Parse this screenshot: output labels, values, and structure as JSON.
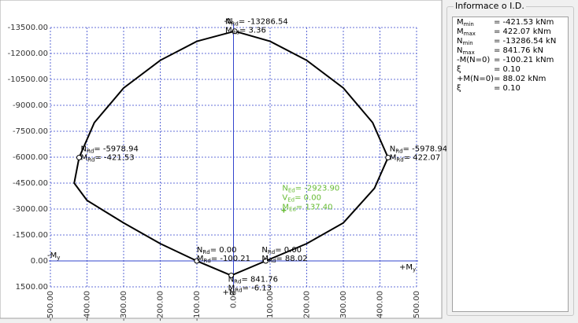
{
  "chart_data": {
    "type": "line",
    "xlim": [
      -500,
      500
    ],
    "ylim": [
      -13500,
      1500
    ],
    "y_reversed": true,
    "grid": true,
    "xticks": [
      {
        "value": -500,
        "label": "-500.00"
      },
      {
        "value": -400,
        "label": "-400.00"
      },
      {
        "value": -300,
        "label": "-300.00"
      },
      {
        "value": -200,
        "label": "-200.00"
      },
      {
        "value": -100,
        "label": "-100.00"
      },
      {
        "value": 0,
        "label": "0.00"
      },
      {
        "value": 100,
        "label": "100.00"
      },
      {
        "value": 200,
        "label": "200.00"
      },
      {
        "value": 300,
        "label": "300.00"
      },
      {
        "value": 400,
        "label": "400.00"
      },
      {
        "value": 500,
        "label": "500.00"
      }
    ],
    "yticks": [
      {
        "value": -13500,
        "label": "-13500.00"
      },
      {
        "value": -12000,
        "label": "-12000.00"
      },
      {
        "value": -10500,
        "label": "-10500.00"
      },
      {
        "value": -9000,
        "label": "-9000.00"
      },
      {
        "value": -7500,
        "label": "-7500.00"
      },
      {
        "value": -6000,
        "label": "-6000.00"
      },
      {
        "value": -4500,
        "label": "-4500.00"
      },
      {
        "value": -3000,
        "label": "-3000.00"
      },
      {
        "value": -1500,
        "label": "-1500.00"
      },
      {
        "value": 0,
        "label": "0.00"
      },
      {
        "value": 1500,
        "label": "1500.00"
      }
    ],
    "axis_labels": {
      "top": "-N",
      "bottom": "+N",
      "left": {
        "sym": "-M",
        "sub": "y"
      },
      "right": {
        "sym": "+M",
        "sub": "y"
      }
    },
    "curve": {
      "color": "#000000",
      "x": [
        3.36,
        -100,
        -200,
        -300,
        -380,
        -421.53,
        -435,
        -400,
        -300,
        -200,
        -100.21,
        -6.13,
        88.02,
        200,
        300,
        385,
        422.07,
        380,
        300,
        200,
        100,
        3.36
      ],
      "y": [
        -13286.54,
        -12700,
        -11600,
        -10000,
        -8000,
        -5978.94,
        -4500,
        -3500,
        -2200,
        -1000,
        0,
        841.76,
        0,
        -1000,
        -2200,
        -4200,
        -5978.94,
        -8000,
        -10000,
        -11600,
        -12700,
        -13286.54
      ]
    },
    "annotations": [
      {
        "x": 3.36,
        "y": -13286.54,
        "lines": [
          {
            "sym": "N",
            "sub": "Rd",
            "rest": "= -13286.54"
          },
          {
            "sym": "M",
            "sub": "Rd",
            "rest": "= 3.36"
          }
        ]
      },
      {
        "x": -421.53,
        "y": -5978.94,
        "lines": [
          {
            "sym": "N",
            "sub": "Rd",
            "rest": "= -5978.94"
          },
          {
            "sym": "M",
            "sub": "Rd",
            "rest": "= -421.53"
          }
        ]
      },
      {
        "x": 422.07,
        "y": -5978.94,
        "lines": [
          {
            "sym": "N",
            "sub": "Rd",
            "rest": "= -5978.94"
          },
          {
            "sym": "M",
            "sub": "Rd",
            "rest": "= 422.07"
          }
        ]
      },
      {
        "x": -100.21,
        "y": 0,
        "lines": [
          {
            "sym": "N",
            "sub": "Rd",
            "rest": "= 0.00"
          },
          {
            "sym": "M",
            "sub": "Rd",
            "rest": "= -100.21"
          }
        ]
      },
      {
        "x": 88.02,
        "y": 0,
        "lines": [
          {
            "sym": "N",
            "sub": "Rd",
            "rest": "= 0.00"
          },
          {
            "sym": "M",
            "sub": "Rd",
            "rest": "= 88.02"
          }
        ]
      },
      {
        "x": -6.13,
        "y": 841.76,
        "lines": [
          {
            "sym": "N",
            "sub": "Rd",
            "rest": "= 841.76"
          },
          {
            "sym": "M",
            "sub": "Rd",
            "rest": "= -6.13"
          }
        ]
      }
    ],
    "design_load": {
      "color": "#66bb33",
      "x": 137.4,
      "y": -2923.9,
      "lines": [
        {
          "sym": "N",
          "sub": "Ed",
          "rest": "= -2923.90"
        },
        {
          "sym": "V",
          "sub": "Ed",
          "rest": "= 0.00"
        },
        {
          "sym": "M",
          "sub": "Ed",
          "rest": "= 137.40"
        }
      ]
    }
  },
  "info_panel": {
    "title": "Informace o I.D.",
    "rows": [
      {
        "sym": "M",
        "sub": "min",
        "value": "= -421.53 kNm"
      },
      {
        "sym": "M",
        "sub": "max",
        "value": "= 422.07 kNm"
      },
      {
        "sym": "N",
        "sub": "min",
        "value": "= -13286.54 kN"
      },
      {
        "sym": "N",
        "sub": "max",
        "value": "= 841.76 kN"
      },
      {
        "sym": "-M(N=0)",
        "sub": "",
        "value": "= -100.21 kNm"
      },
      {
        "sym": "ξ",
        "sub": "",
        "value": "= 0.10"
      },
      {
        "sym": "+M(N=0)",
        "sub": "",
        "value": "= 88.02 kNm"
      },
      {
        "sym": "ξ",
        "sub": "",
        "value": "= 0.10"
      }
    ]
  }
}
